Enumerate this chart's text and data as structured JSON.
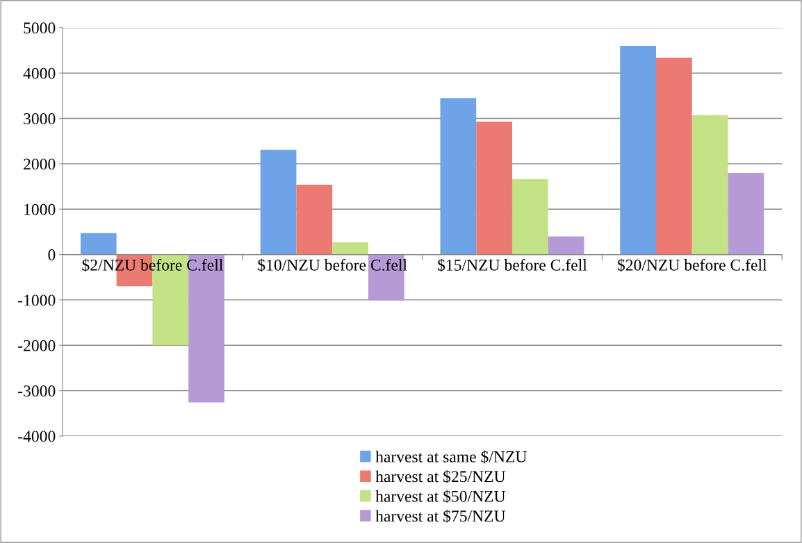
{
  "chart_data": {
    "type": "bar",
    "categories": [
      "$2/NZU before C.fell",
      "$10/NZU before C.fell",
      "$15/NZU before C.fell",
      "$20/NZU before C.fell"
    ],
    "series": [
      {
        "name": "harvest at same $/NZU",
        "color": "#6fa3e8",
        "values": [
          470,
          2310,
          3450,
          4600
        ]
      },
      {
        "name": "harvest at $25/NZU",
        "color": "#ec7a72",
        "values": [
          -700,
          1540,
          2930,
          4340
        ]
      },
      {
        "name": "harvest at $50/NZU",
        "color": "#c3e285",
        "values": [
          -2000,
          270,
          1660,
          3070
        ]
      },
      {
        "name": "harvest at $75/NZU",
        "color": "#b59ad6",
        "values": [
          -3260,
          -1010,
          400,
          1800
        ]
      }
    ],
    "ylim": [
      -4000,
      5000
    ],
    "yticks": [
      -4000,
      -3000,
      -2000,
      -1000,
      0,
      1000,
      2000,
      3000,
      4000,
      5000
    ],
    "grid": "y",
    "legend": "bottom"
  }
}
